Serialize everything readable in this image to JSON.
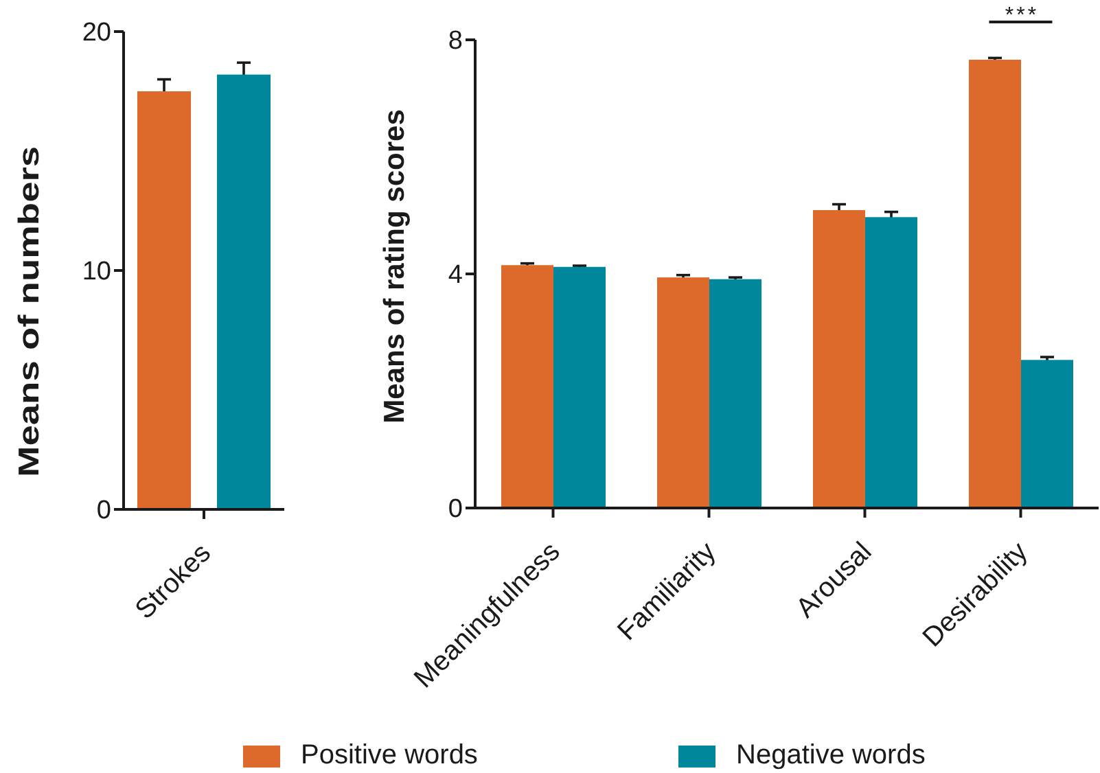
{
  "chart_data": [
    {
      "type": "bar",
      "categories": [
        "Strokes"
      ],
      "ylabel": "Means of numbers",
      "series": [
        {
          "color": "#dd6a2b",
          "values": [
            17.5
          ],
          "errors": [
            0.5
          ]
        },
        {
          "color": "#00879b",
          "values": [
            18.2
          ],
          "errors": [
            0.5
          ]
        }
      ],
      "ylim": [
        0,
        20
      ],
      "yticks": [
        0,
        10,
        20
      ]
    },
    {
      "type": "bar",
      "categories": [
        "Meaningfulness",
        "Familiarity",
        "Arousal",
        "Desirability"
      ],
      "ylabel": "Means of rating scores",
      "series": [
        {
          "name": "Positive words",
          "color": "#dd6a2b",
          "values": [
            4.15,
            3.94,
            5.09,
            7.66
          ],
          "errors": [
            0.03,
            0.04,
            0.1,
            0.03
          ]
        },
        {
          "name": "Negative words",
          "color": "#00879b",
          "values": [
            4.12,
            3.91,
            4.97,
            2.53
          ],
          "errors": [
            0.02,
            0.03,
            0.09,
            0.05
          ]
        }
      ],
      "ylim": [
        0,
        8
      ],
      "yticks": [
        0,
        4,
        8
      ],
      "legend": "bottom",
      "annotations": [
        "***"
      ]
    }
  ]
}
